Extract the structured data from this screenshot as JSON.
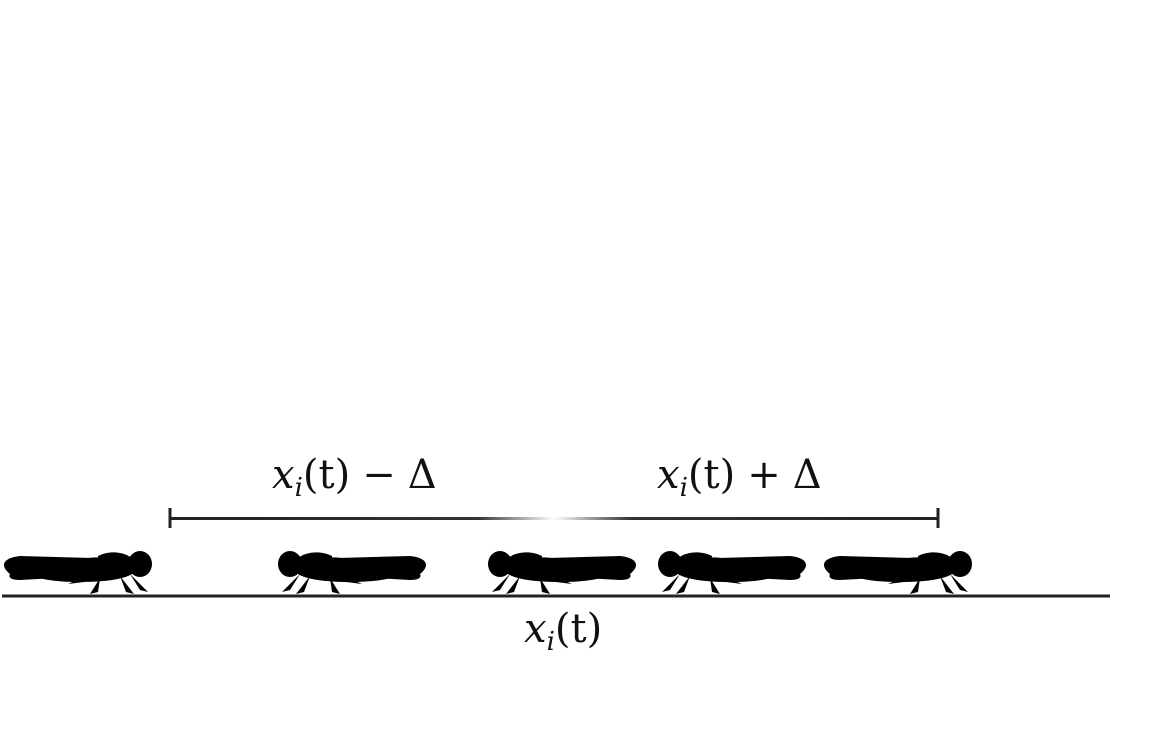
{
  "labels": {
    "left_bound": "x_i(t) − Δ",
    "right_bound": "x_i(t) + Δ",
    "position": "x_i(t)"
  },
  "math": {
    "var": "x",
    "sub": "i",
    "arg": "(t)",
    "minus": "−",
    "plus": "+",
    "delta": "Δ"
  },
  "locusts": [
    {
      "name": "locust-grey-left",
      "color": "grey",
      "facing": "right"
    },
    {
      "name": "locust-green-1",
      "color": "green",
      "facing": "left"
    },
    {
      "name": "locust-orange-focal",
      "color": "orange",
      "facing": "left"
    },
    {
      "name": "locust-green-2",
      "color": "green",
      "facing": "left"
    },
    {
      "name": "locust-green-3",
      "color": "green",
      "facing": "right"
    }
  ],
  "colors": {
    "ground": "#222222",
    "bracket": "#222222",
    "green": "#6f9a45",
    "orange": "#e0a42a",
    "grey": "#a9a9a9"
  }
}
